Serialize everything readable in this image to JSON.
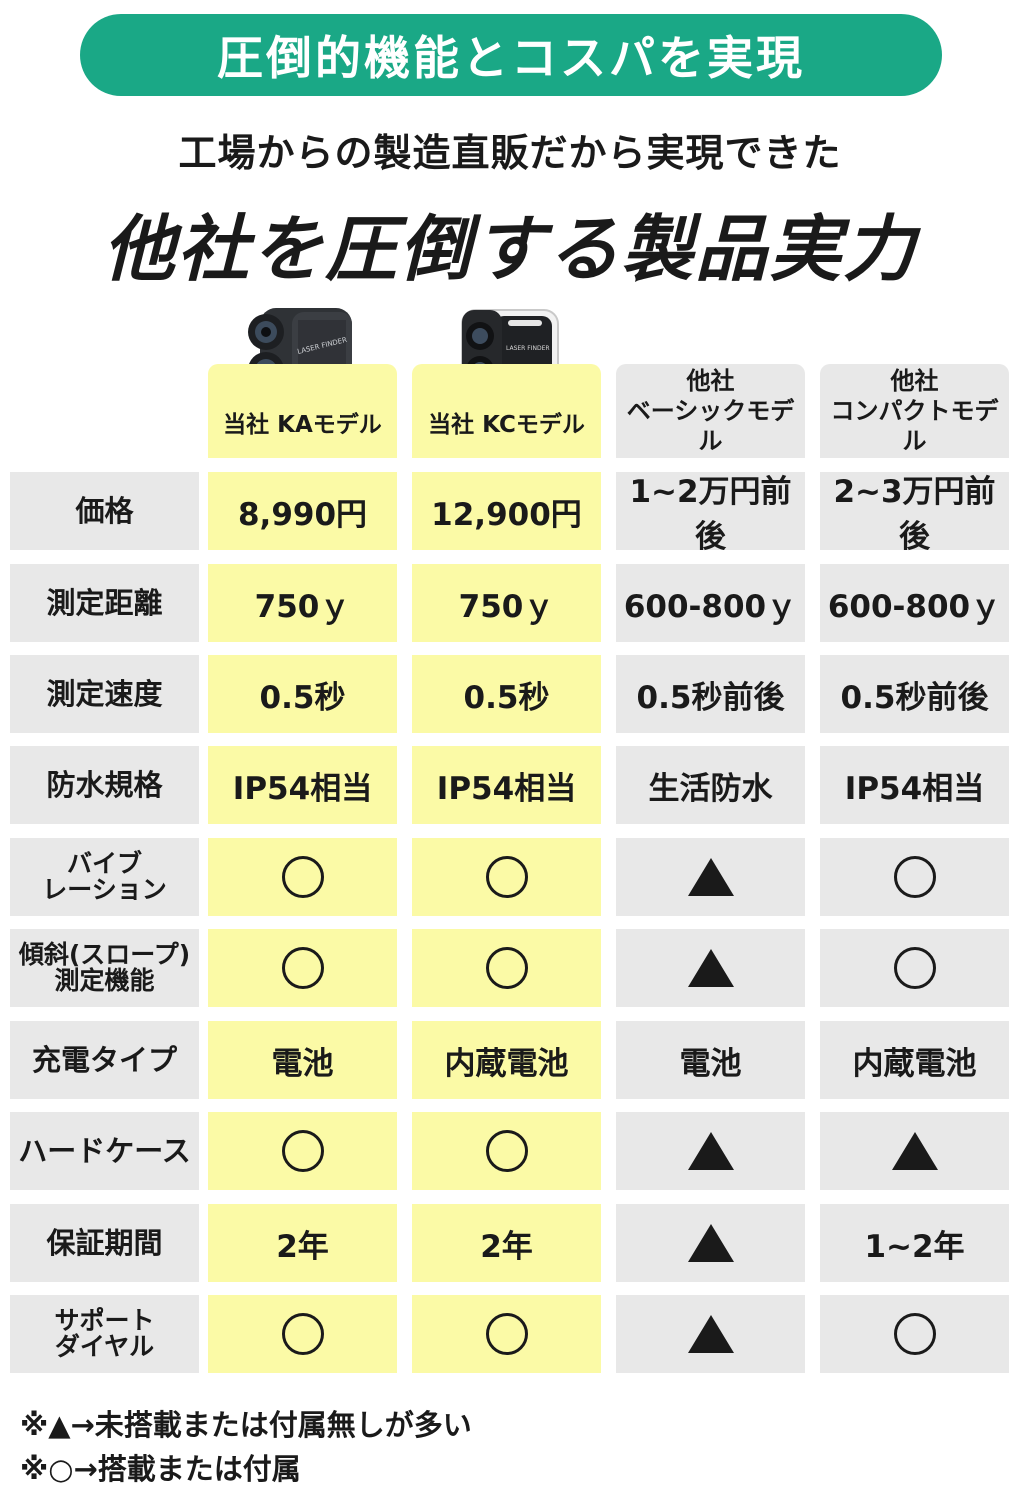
{
  "banner": "圧倒的機能とコスパを実現",
  "subtitle": "工場からの製造直販だから実現できた",
  "headline": "他社を圧倒する製品実力",
  "products": {
    "ka_logo_text": "LASER FINDER",
    "kc_logo_text": "LASER FINDER"
  },
  "columns": [
    {
      "label": "当社 KAモデル"
    },
    {
      "label": "当社 KCモデル"
    },
    {
      "label_line1": "他社",
      "label_line2": "ベーシックモデル"
    },
    {
      "label_line1": "他社",
      "label_line2": "コンパクトモデル"
    }
  ],
  "rows": [
    {
      "label": "価格",
      "values": [
        "8,990円",
        "12,900円",
        "1~2万円前後",
        "2~3万円前後"
      ]
    },
    {
      "label": "測定距離",
      "values": [
        "750ｙ",
        "750ｙ",
        "600-800ｙ",
        "600-800ｙ"
      ]
    },
    {
      "label": "測定速度",
      "values": [
        "0.5秒",
        "0.5秒",
        "0.5秒前後",
        "0.5秒前後"
      ]
    },
    {
      "label": "防水規格",
      "values": [
        "IP54相当",
        "IP54相当",
        "生活防水",
        "IP54相当"
      ]
    },
    {
      "label_line1": "バイブ",
      "label_line2": "レーション",
      "values": [
        "○",
        "○",
        "▲",
        "○"
      ]
    },
    {
      "label_line1": "傾斜(スロープ)",
      "label_line2": "測定機能",
      "values": [
        "○",
        "○",
        "▲",
        "○"
      ]
    },
    {
      "label": "充電タイプ",
      "values": [
        "電池",
        "内蔵電池",
        "電池",
        "内蔵電池"
      ]
    },
    {
      "label": "ハードケース",
      "values": [
        "○",
        "○",
        "▲",
        "▲"
      ]
    },
    {
      "label": "保証期間",
      "values": [
        "2年",
        "2年",
        "▲",
        "1~2年"
      ]
    },
    {
      "label_line1": "サポート",
      "label_line2": "ダイヤル",
      "values": [
        "○",
        "○",
        "▲",
        "○"
      ]
    }
  ],
  "notes": [
    "※▲→未搭載または付属無しが多い",
    "※○→搭載または付属"
  ],
  "colors": {
    "banner": "#1aa886",
    "ours_highlight": "#fbfaa6",
    "others_gray": "#e8e8e8"
  }
}
